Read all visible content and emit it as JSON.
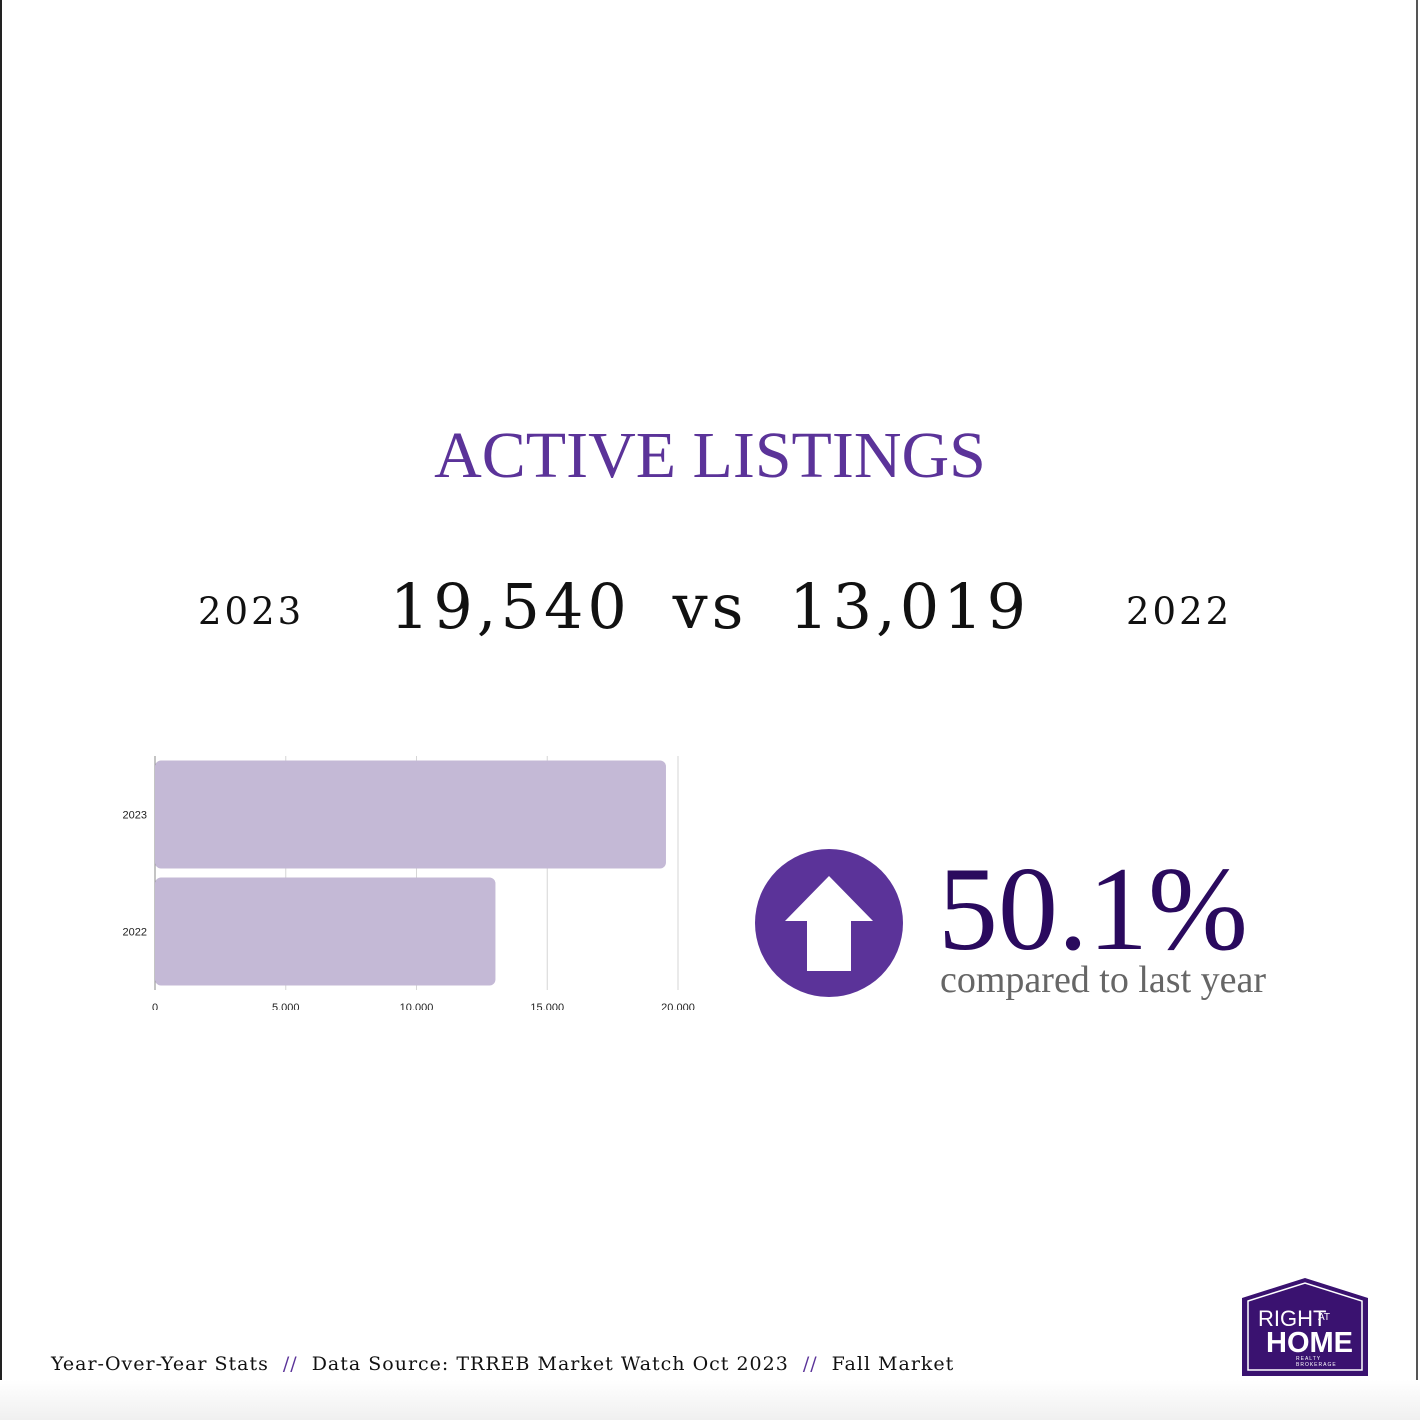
{
  "title": "ACTIVE LISTINGS",
  "year_left": "2023",
  "year_right": "2022",
  "value_left": "19,540",
  "vs": "vs",
  "value_right": "13,019",
  "change": {
    "percent": "50.1%",
    "caption": "compared to last year",
    "direction": "up",
    "icon": "up-arrow-icon"
  },
  "footer": {
    "item1": "Year-Over-Year Stats",
    "sep": "//",
    "item2": "Data Source: TRREB Market Watch Oct 2023",
    "item3": "Fall Market"
  },
  "logo": {
    "line1": "RIGHT",
    "line1b": "AT",
    "line2": "HOME",
    "line3": "REALTY",
    "line4": "BROKERAGE"
  },
  "colors": {
    "accent": "#5b3399",
    "bar": "#c4b9d6",
    "logo_bg": "#3a1270",
    "pct": "#2a0a5e"
  },
  "chart_data": {
    "type": "bar",
    "orientation": "horizontal",
    "categories": [
      "2023",
      "2022"
    ],
    "values": [
      19540,
      13019
    ],
    "xlim": [
      0,
      20000
    ],
    "xticks": [
      "0",
      "5,000",
      "10,000",
      "15,000",
      "20,000"
    ],
    "xtick_values": [
      0,
      5000,
      10000,
      15000,
      20000
    ],
    "grid": true,
    "legend": "none"
  }
}
